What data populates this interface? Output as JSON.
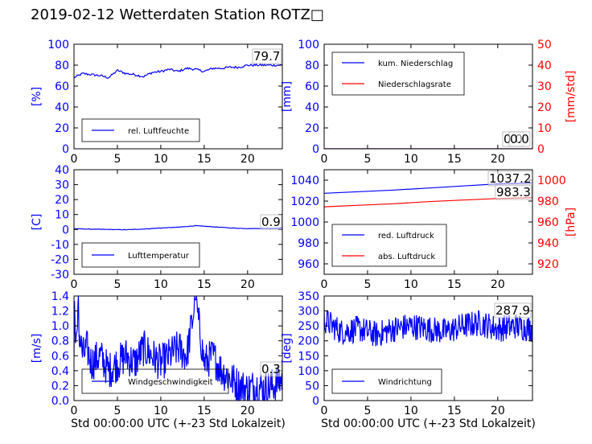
{
  "title": "2019-02-12 Wetterdaten Station ROTZ□",
  "colors": {
    "primary": "#0000ff",
    "secondary": "#ff0000",
    "frame": "#000000"
  },
  "chart_data": [
    {
      "id": "humidity",
      "type": "line",
      "xlim": [
        0,
        24
      ],
      "xticks": [
        0,
        5,
        10,
        15,
        20
      ],
      "ylim": [
        0,
        100
      ],
      "yticks": [
        0,
        20,
        40,
        60,
        80,
        100
      ],
      "ylabel": "[%]",
      "ylabel_color": "#0000ff",
      "legend_location": "lower-left",
      "series": [
        {
          "name": "rel. Luftfeuchte",
          "color": "#0000ff",
          "x": [
            0,
            1,
            2,
            3,
            4,
            5,
            6,
            7,
            8,
            9,
            10,
            11,
            12,
            13,
            14,
            15,
            16,
            17,
            18,
            19,
            20,
            21,
            22,
            23,
            24
          ],
          "y": [
            68,
            72,
            71,
            70,
            68,
            75,
            72,
            71,
            69,
            73,
            74,
            76,
            74,
            77,
            76,
            74,
            77,
            77,
            78,
            78,
            80,
            80,
            80,
            80,
            80
          ]
        }
      ],
      "annotations": [
        {
          "text": "79.7"
        }
      ]
    },
    {
      "id": "precipitation",
      "type": "line",
      "xlim": [
        0,
        24
      ],
      "xticks": [
        0,
        5,
        10,
        15,
        20
      ],
      "ylim": [
        0,
        100
      ],
      "yticks": [
        0,
        20,
        40,
        60,
        80,
        100
      ],
      "ylabel": "[mm]",
      "ylabel_color": "#0000ff",
      "y2lim": [
        0,
        50
      ],
      "y2ticks": [
        0,
        10,
        20,
        30,
        40,
        50
      ],
      "y2label": "[mm/std]",
      "y2label_color": "#ff0000",
      "legend_location": "upper-left",
      "series": [
        {
          "name": "kum. Niederschlag",
          "color": "#0000ff",
          "axis": "left",
          "x": [
            0,
            24
          ],
          "y": [
            0,
            0
          ]
        },
        {
          "name": "Niederschlagsrate",
          "color": "#ff0000",
          "axis": "right",
          "x": [
            0,
            24
          ],
          "y": [
            0,
            0
          ]
        }
      ],
      "annotations": [
        {
          "text": "0.0"
        },
        {
          "text": "0.0"
        }
      ]
    },
    {
      "id": "temperature",
      "type": "line",
      "xlim": [
        0,
        24
      ],
      "xticks": [
        0,
        5,
        10,
        15,
        20
      ],
      "ylim": [
        -30,
        40
      ],
      "yticks": [
        -30,
        -20,
        -10,
        0,
        10,
        20,
        30,
        40
      ],
      "ylabel": "[C]",
      "ylabel_color": "#0000ff",
      "legend_location": "lower-left",
      "series": [
        {
          "name": "Lufttemperatur",
          "color": "#0000ff",
          "x": [
            0,
            2,
            4,
            6,
            8,
            10,
            12,
            14,
            16,
            18,
            20,
            22,
            24
          ],
          "y": [
            0.5,
            0.2,
            0,
            -0.2,
            0.3,
            1,
            1.5,
            2.5,
            1.8,
            1,
            0.6,
            0.7,
            0.9
          ]
        }
      ],
      "annotations": [
        {
          "text": "0.9"
        }
      ]
    },
    {
      "id": "pressure",
      "type": "line",
      "xlim": [
        0,
        24
      ],
      "xticks": [
        0,
        5,
        10,
        15,
        20
      ],
      "ylim": [
        950,
        1050
      ],
      "yticks": [
        960,
        980,
        1000,
        1020,
        1040
      ],
      "y2lim": [
        910,
        1010
      ],
      "y2ticks": [
        920,
        940,
        960,
        980,
        1000
      ],
      "y2label": "[hPa]",
      "y2label_color": "#ff0000",
      "legend_location": "lower-left",
      "series": [
        {
          "name": "red. Luftdruck",
          "color": "#0000ff",
          "axis": "left",
          "x": [
            0,
            4,
            8,
            12,
            16,
            20,
            24
          ],
          "y": [
            1027.5,
            1029,
            1030.5,
            1032.5,
            1034.5,
            1036.5,
            1037.2
          ]
        },
        {
          "name": "abs. Luftdruck",
          "color": "#ff0000",
          "axis": "right",
          "x": [
            0,
            4,
            8,
            12,
            16,
            20,
            24
          ],
          "y": [
            974.5,
            976,
            977.5,
            979.5,
            981,
            982.5,
            983.3
          ]
        }
      ],
      "annotations": [
        {
          "text": "1037.2"
        },
        {
          "text": "983.3"
        }
      ]
    },
    {
      "id": "windspeed",
      "type": "line",
      "xlim": [
        0,
        24
      ],
      "xticks": [
        0,
        5,
        10,
        15,
        20
      ],
      "ylim": [
        0,
        1.4
      ],
      "yticks": [
        0.0,
        0.2,
        0.4,
        0.6,
        0.8,
        1.0,
        1.2,
        1.4
      ],
      "ytick_labels": [
        "0.0",
        "0.2",
        "0.4",
        "0.6",
        "0.8",
        "1.0",
        "1.2",
        "1.4"
      ],
      "ylabel": "[m/s]",
      "ylabel_color": "#0000ff",
      "xlabel": "Std 00:00:00 UTC (+-23 Std Lokalzeit)",
      "legend_location": "lower-left",
      "series": [
        {
          "name": "Windgeschwindigkeit",
          "color": "#0000ff",
          "x": [
            0,
            0.5,
            1,
            1.5,
            2,
            3,
            4,
            5,
            6,
            7,
            8,
            9,
            10,
            11,
            12,
            13,
            14,
            15,
            16,
            17,
            18,
            19,
            20,
            21,
            22,
            23,
            24
          ],
          "y": [
            0.8,
            1.0,
            0.6,
            0.7,
            0.5,
            0.6,
            0.4,
            0.5,
            0.6,
            0.5,
            0.7,
            0.6,
            0.5,
            0.6,
            0.7,
            0.6,
            1.35,
            0.5,
            0.6,
            0.4,
            0.3,
            0.2,
            0.15,
            0.2,
            0.15,
            0.2,
            0.3
          ],
          "noise": 0.25
        }
      ],
      "annotations": [
        {
          "text": "0.3"
        }
      ]
    },
    {
      "id": "winddirection",
      "type": "line",
      "xlim": [
        0,
        24
      ],
      "xticks": [
        0,
        5,
        10,
        15,
        20
      ],
      "ylim": [
        0,
        350
      ],
      "yticks": [
        0,
        50,
        100,
        150,
        200,
        250,
        300,
        350
      ],
      "ylabel": "[deg]",
      "ylabel_color": "#0000ff",
      "xlabel": "Std 00:00:00 UTC (+-23 Std Lokalzeit)",
      "legend_location": "lower-left",
      "series": [
        {
          "name": "Windrichtung",
          "color": "#0000ff",
          "x": [
            0,
            2,
            4,
            6,
            8,
            10,
            12,
            14,
            16,
            18,
            20,
            22,
            24
          ],
          "y": [
            270,
            230,
            240,
            220,
            240,
            250,
            240,
            230,
            250,
            260,
            240,
            250,
            240
          ],
          "noise": 45
        }
      ],
      "annotations": [
        {
          "text": "287.9"
        }
      ]
    }
  ]
}
